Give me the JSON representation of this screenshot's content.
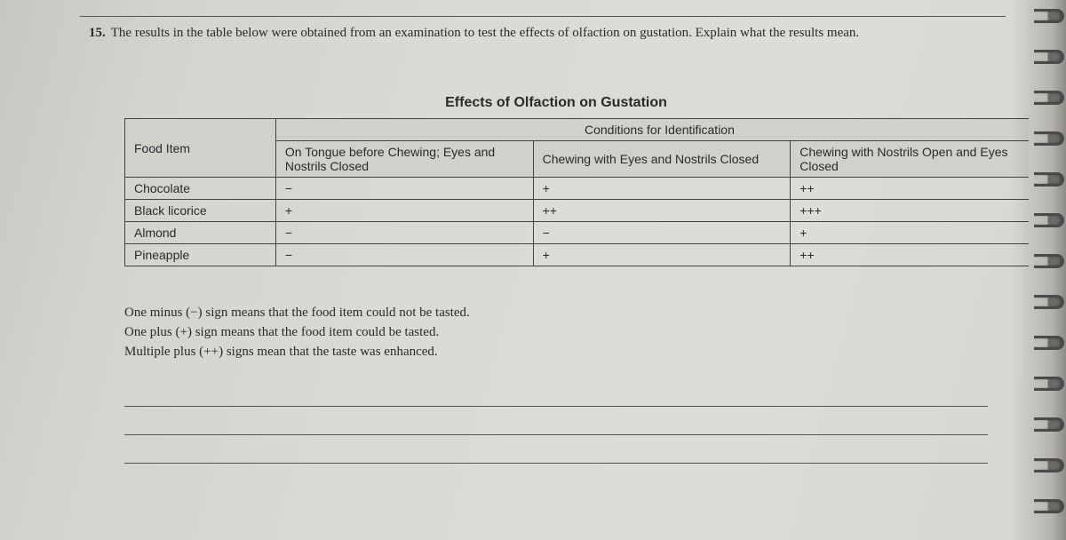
{
  "question": {
    "number": "15.",
    "text": "The results in the table below were obtained from an examination to test the effects of olfaction on gustation. Explain what the results mean."
  },
  "table": {
    "title": "Effects of Olfaction on Gustation",
    "conditions_header": "Conditions for Identification",
    "columns": {
      "food": "Food Item",
      "a": "On Tongue before Chewing; Eyes and Nostrils Closed",
      "b": "Chewing with Eyes and Nostrils Closed",
      "c": "Chewing with Nostrils Open and Eyes Closed"
    },
    "rows": [
      {
        "food": "Chocolate",
        "a": "−",
        "b": "+",
        "c": "++"
      },
      {
        "food": "Black licorice",
        "a": "+",
        "b": "++",
        "c": "+++"
      },
      {
        "food": "Almond",
        "a": "−",
        "b": "−",
        "c": "+"
      },
      {
        "food": "Pineapple",
        "a": "−",
        "b": "+",
        "c": "++"
      }
    ]
  },
  "legend": {
    "l1": "One minus (−) sign means that the food item could not be tasted.",
    "l2": "One plus (+) sign means that the food item could be tasted.",
    "l3": "Multiple plus (++) signs mean that the taste was enhanced."
  },
  "style": {
    "ring_count": 13,
    "ring_spacing": 46,
    "ring_start": 10
  }
}
